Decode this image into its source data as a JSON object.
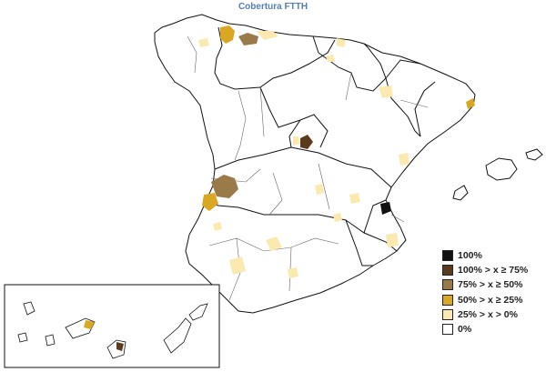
{
  "title": "Cobertura FTTH",
  "legend": {
    "items": [
      {
        "label": "100%",
        "color": "#111111"
      },
      {
        "label": "100% > x ≥ 75%",
        "color": "#5c3a1e"
      },
      {
        "label": "75% > x ≥ 50%",
        "color": "#9a7a48"
      },
      {
        "label": "50% > x ≥ 25%",
        "color": "#d9a722"
      },
      {
        "label": "25% > x > 0%",
        "color": "#fbe9b0"
      },
      {
        "label": "0%",
        "color": "#ffffff"
      }
    ]
  },
  "colors": {
    "title": "#4f7fb5",
    "region_border": "#111111",
    "province_border": "#555555"
  }
}
